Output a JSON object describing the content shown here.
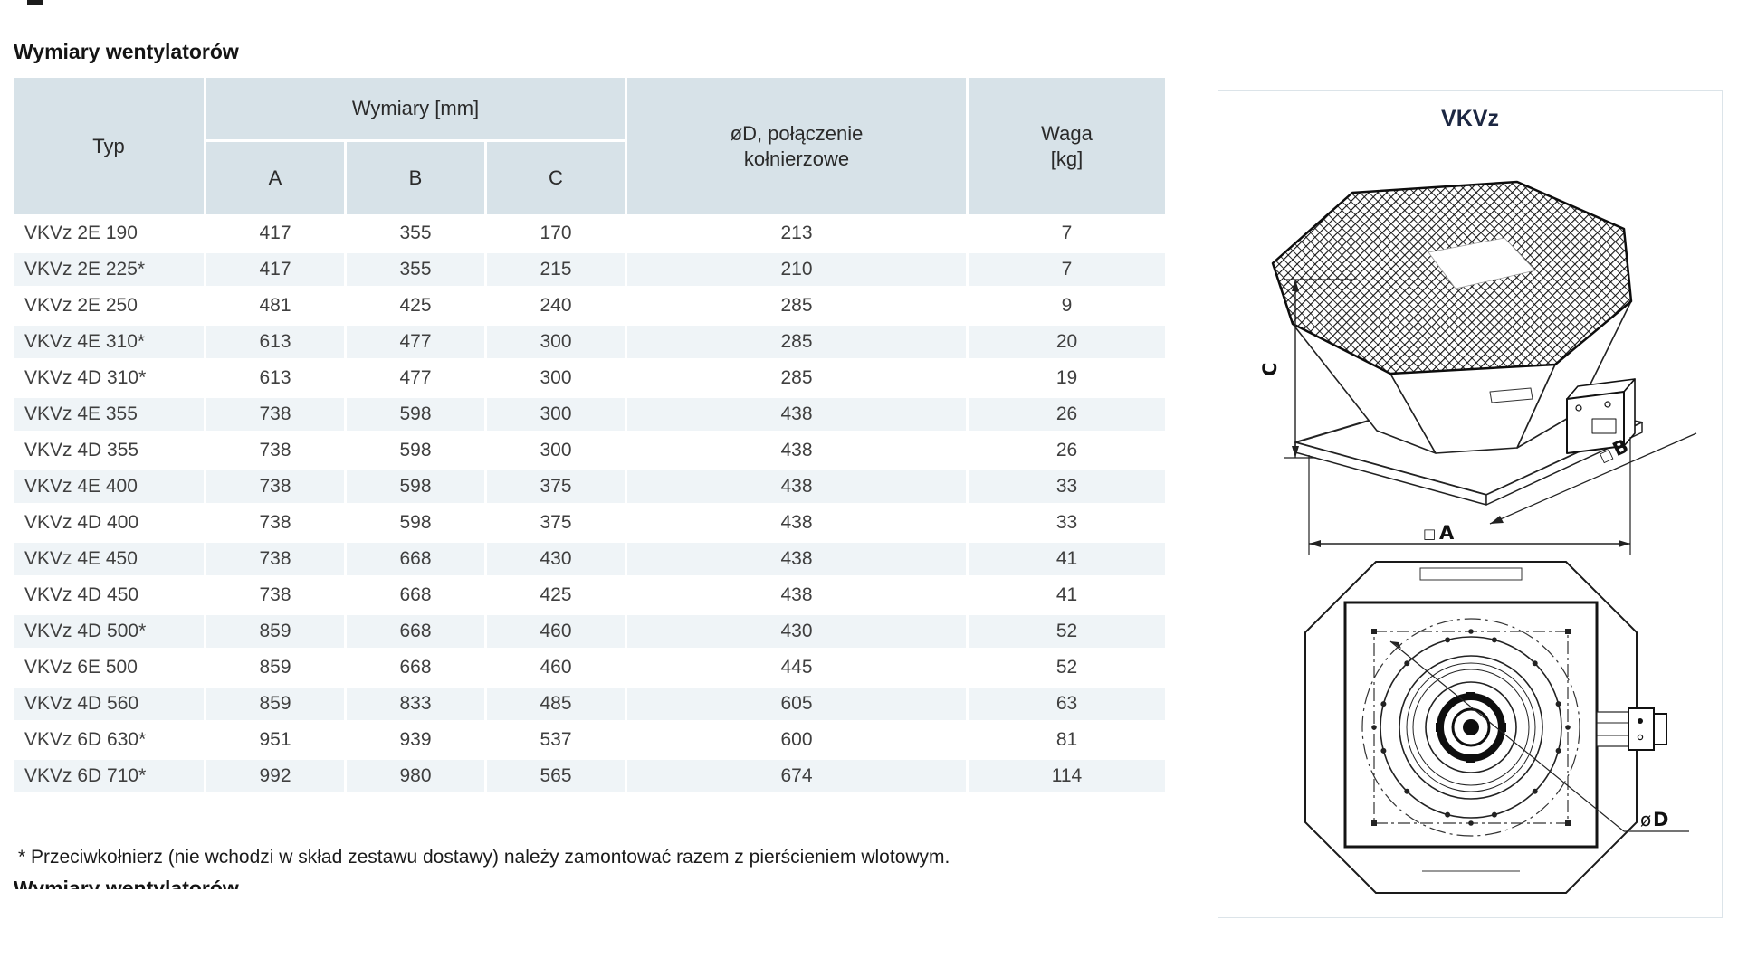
{
  "page": {
    "title": "Wymiary wentylatorów",
    "footnote": "* Przeciwkołnierz (nie wchodzi w skład zestawu dostawy) należy zamontować razem z pierścieniem wlotowym.",
    "next_section_heading_cut": "Wymiary wentylatorów"
  },
  "table": {
    "headers": {
      "typ": "Typ",
      "wymiary_group": "Wymiary [mm]",
      "a": "A",
      "b": "B",
      "c": "C",
      "od": "øD, połączenie kołnierzowe",
      "waga": "Waga [kg]"
    },
    "rows": [
      {
        "typ": "VKVz 2E 190",
        "a": "417",
        "b": "355",
        "c": "170",
        "od": "213",
        "waga": "7"
      },
      {
        "typ": "VKVz 2E 225*",
        "a": "417",
        "b": "355",
        "c": "215",
        "od": "210",
        "waga": "7"
      },
      {
        "typ": "VKVz 2E 250",
        "a": "481",
        "b": "425",
        "c": "240",
        "od": "285",
        "waga": "9"
      },
      {
        "typ": "VKVz 4E 310*",
        "a": "613",
        "b": "477",
        "c": "300",
        "od": "285",
        "waga": "20"
      },
      {
        "typ": "VKVz 4D 310*",
        "a": "613",
        "b": "477",
        "c": "300",
        "od": "285",
        "waga": "19"
      },
      {
        "typ": "VKVz 4E 355",
        "a": "738",
        "b": "598",
        "c": "300",
        "od": "438",
        "waga": "26"
      },
      {
        "typ": "VKVz 4D 355",
        "a": "738",
        "b": "598",
        "c": "300",
        "od": "438",
        "waga": "26"
      },
      {
        "typ": "VKVz 4E 400",
        "a": "738",
        "b": "598",
        "c": "375",
        "od": "438",
        "waga": "33"
      },
      {
        "typ": "VKVz 4D 400",
        "a": "738",
        "b": "598",
        "c": "375",
        "od": "438",
        "waga": "33"
      },
      {
        "typ": "VKVz 4E 450",
        "a": "738",
        "b": "668",
        "c": "430",
        "od": "438",
        "waga": "41"
      },
      {
        "typ": "VKVz 4D 450",
        "a": "738",
        "b": "668",
        "c": "425",
        "od": "438",
        "waga": "41"
      },
      {
        "typ": "VKVz 4D 500*",
        "a": "859",
        "b": "668",
        "c": "460",
        "od": "430",
        "waga": "52"
      },
      {
        "typ": "VKVz 6E 500",
        "a": "859",
        "b": "668",
        "c": "460",
        "od": "445",
        "waga": "52"
      },
      {
        "typ": "VKVz 4D 560",
        "a": "859",
        "b": "833",
        "c": "485",
        "od": "605",
        "waga": "63"
      },
      {
        "typ": "VKVz 6D 630*",
        "a": "951",
        "b": "939",
        "c": "537",
        "od": "600",
        "waga": "81"
      },
      {
        "typ": "VKVz 6D 710*",
        "a": "992",
        "b": "980",
        "c": "565",
        "od": "674",
        "waga": "114"
      }
    ]
  },
  "diagram": {
    "title": "VKVz",
    "labels": {
      "c": "C",
      "a_prefix": "□",
      "a": "A",
      "b_prefix": "□",
      "b": "B",
      "d_prefix": "ø",
      "d": "D"
    }
  },
  "colors": {
    "header_bg": "#d7e2e8",
    "row_alt_bg": "#eff4f7",
    "text": "#3f3f3f",
    "diagram_title": "#1c2742",
    "panel_border": "#dce4e9"
  }
}
